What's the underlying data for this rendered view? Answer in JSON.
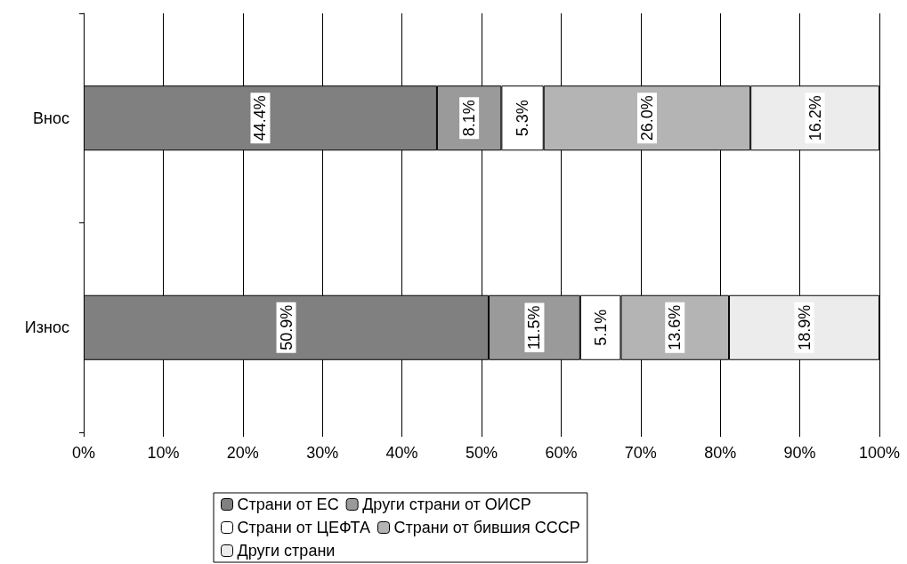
{
  "chart_data": {
    "type": "bar",
    "orientation": "horizontal",
    "stacked": true,
    "categories": [
      "Внос",
      "Износ"
    ],
    "series": [
      {
        "name": "Страни от ЕС",
        "color": "#808080",
        "values": [
          44.4,
          50.9
        ],
        "value_labels": [
          "44.4%",
          "50.9%"
        ]
      },
      {
        "name": "Други страни от ОИСР",
        "color": "#9a9a9a",
        "values": [
          8.1,
          11.5
        ],
        "value_labels": [
          "8.1%",
          "11.5%"
        ]
      },
      {
        "name": "Страни от ЦЕФТА",
        "color": "#ffffff",
        "values": [
          5.3,
          5.1
        ],
        "value_labels": [
          "5.3%",
          "5.1%"
        ]
      },
      {
        "name": "Страни от бившия СССР",
        "color": "#b4b4b4",
        "values": [
          26.0,
          13.6
        ],
        "value_labels": [
          "26.0%",
          "13.6%"
        ]
      },
      {
        "name": "Други страни",
        "color": "#ececec",
        "values": [
          16.2,
          18.9
        ],
        "value_labels": [
          "16.2%",
          "18.9%"
        ]
      }
    ],
    "xlim": [
      0,
      100
    ],
    "xticks": [
      {
        "value": 0,
        "label": "0%"
      },
      {
        "value": 10,
        "label": "10%"
      },
      {
        "value": 20,
        "label": "20%"
      },
      {
        "value": 30,
        "label": "30%"
      },
      {
        "value": 40,
        "label": "40%"
      },
      {
        "value": 50,
        "label": "50%"
      },
      {
        "value": 60,
        "label": "60%"
      },
      {
        "value": 70,
        "label": "70%"
      },
      {
        "value": 80,
        "label": "80%"
      },
      {
        "value": 90,
        "label": "90%"
      },
      {
        "value": 100,
        "label": "100%"
      }
    ],
    "grid": "x",
    "legend": "bottom"
  }
}
